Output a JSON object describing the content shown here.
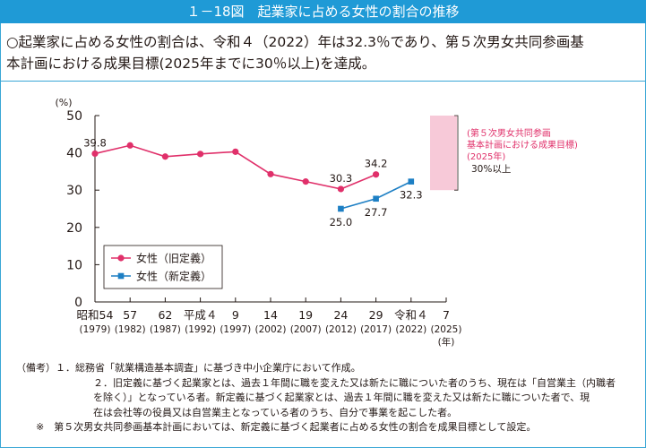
{
  "figure_title": "１－18図　起業家に占める女性の割合の推移",
  "summary_lines": [
    "○起業家に占める女性の割合は、令和４（2022）年は32.3％であり、第５次男女共同参画基",
    "本計画における成果目標(2025年までに30％以上)を達成。"
  ],
  "chart_data": {
    "type": "line",
    "yunit": "(%)",
    "xunit": "(年)",
    "ylim": [
      0,
      50
    ],
    "yticks": [
      0,
      10,
      20,
      30,
      40,
      50
    ],
    "x_years": [
      1979,
      1982,
      1987,
      1992,
      1997,
      2002,
      2007,
      2012,
      2017,
      2022,
      2025
    ],
    "x_tick_labels": [
      {
        "era": "昭和54",
        "year": "(1979)"
      },
      {
        "era": "57",
        "year": "(1982)"
      },
      {
        "era": "62",
        "year": "(1987)"
      },
      {
        "era": "平成４",
        "year": "(1992)"
      },
      {
        "era": "9",
        "year": "(1997)"
      },
      {
        "era": "14",
        "year": "(2002)"
      },
      {
        "era": "19",
        "year": "(2007)"
      },
      {
        "era": "24",
        "year": "(2012)"
      },
      {
        "era": "29",
        "year": "(2017)"
      },
      {
        "era": "令和４",
        "year": "(2022)"
      },
      {
        "era": "7",
        "year": "(2025)"
      }
    ],
    "series": [
      {
        "name": "女性（旧定義）",
        "color": "#e0306a",
        "marker": "circle",
        "x": [
          1979,
          1982,
          1987,
          1992,
          1997,
          2002,
          2007,
          2012,
          2017
        ],
        "values": [
          39.8,
          42.0,
          39.0,
          39.7,
          40.3,
          34.3,
          32.3,
          30.3,
          34.2
        ],
        "labels": [
          {
            "x": 1979,
            "text": "39.8",
            "pos": "above"
          },
          {
            "x": 2012,
            "text": "30.3",
            "pos": "above"
          },
          {
            "x": 2017,
            "text": "34.2",
            "pos": "above"
          }
        ]
      },
      {
        "name": "女性（新定義）",
        "color": "#1d7fc4",
        "marker": "square",
        "x": [
          2012,
          2017,
          2022
        ],
        "values": [
          25.0,
          27.7,
          32.3
        ],
        "labels": [
          {
            "x": 2012,
            "text": "25.0",
            "pos": "below"
          },
          {
            "x": 2017,
            "text": "27.7",
            "pos": "below"
          },
          {
            "x": 2022,
            "text": "32.3",
            "pos": "below"
          }
        ]
      }
    ],
    "target": {
      "year": 2025,
      "from": 30,
      "to": 50,
      "fill": "#f7c9d8",
      "note_lines": [
        "(第５次男女共同参画",
        "基本計画における成果目標)",
        "(2025年)"
      ],
      "note_color": "#e0306a",
      "value_label": "30%以上"
    },
    "legend_position": "bottom-left",
    "grid": false
  },
  "notes": [
    {
      "text": "（備考）１．総務省「就業構造基本調査」に基づき中小企業庁において作成。",
      "indent": false
    },
    {
      "text": "２．旧定義に基づく起業家とは、過去１年間に職を変えた又は新たに職についた者のうち、現在は「自営業主（内職者",
      "indent": true
    },
    {
      "text": "を除く）」となっている者。新定義に基づく起業家とは、過去１年間に職を変えた又は新たに職についた者で、現",
      "indent": true
    },
    {
      "text": "在は会社等の役員又は自営業主となっている者のうち、自分で事業を起こした者。",
      "indent": true
    },
    {
      "text": "※　第５次男女共同参画基本計画においては、新定義に基づく起業者に占める女性の割合を成果目標として設定。",
      "indent": false,
      "star": true
    }
  ]
}
